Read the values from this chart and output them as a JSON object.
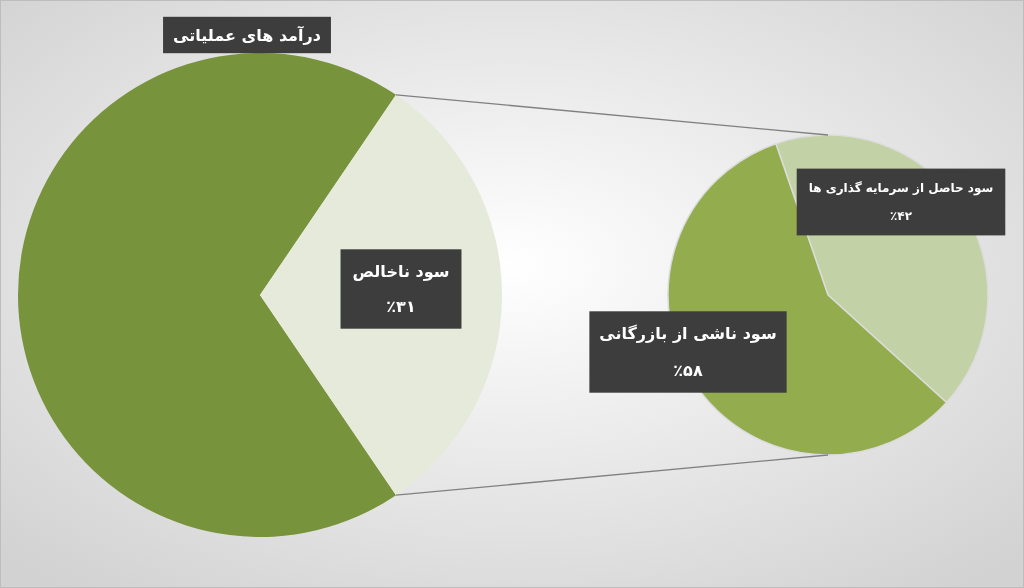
{
  "chart_data": [
    {
      "type": "pie",
      "categories": [
        "درآمد های عملیاتی",
        "سود ناخالص"
      ],
      "values": [
        69,
        31
      ],
      "colors": [
        "#77933c",
        "#e5eada"
      ],
      "value_labels": [
        null,
        "٪۳۱"
      ]
    },
    {
      "type": "pie",
      "categories": [
        "سود حاصل از سرمایه گذاری ها",
        "سود ناشی از بازرگانی"
      ],
      "values": [
        42,
        58
      ],
      "colors": [
        "#c3d1a6",
        "#93ad4e"
      ],
      "value_labels": [
        "٪۴۲",
        "٪۵۸"
      ]
    }
  ]
}
